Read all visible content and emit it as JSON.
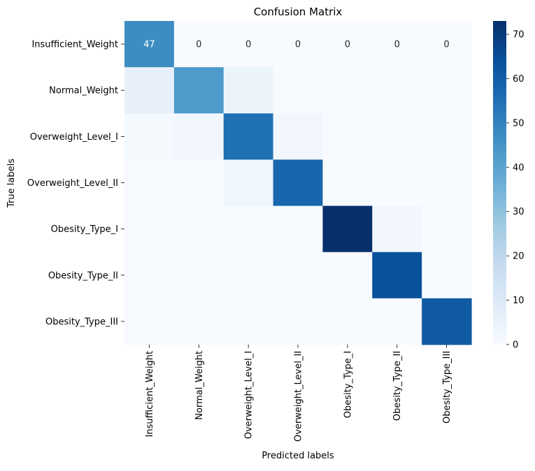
{
  "chart_data": {
    "type": "heatmap",
    "title": "Confusion Matrix",
    "xlabel": "Predicted labels",
    "ylabel": "True labels",
    "x_categories": [
      "Insufficient_Weight",
      "Normal_Weight",
      "Overweight_Level_I",
      "Overweight_Level_II",
      "Obesity_Type_I",
      "Obesity_Type_II",
      "Obesity_Type_III"
    ],
    "y_categories": [
      "Insufficient_Weight",
      "Normal_Weight",
      "Overweight_Level_I",
      "Overweight_Level_II",
      "Obesity_Type_I",
      "Obesity_Type_II",
      "Obesity_Type_III"
    ],
    "matrix": [
      [
        47,
        0,
        0,
        0,
        0,
        0,
        0
      ],
      [
        6,
        43,
        4,
        null,
        null,
        null,
        null
      ],
      [
        1,
        2,
        55,
        2,
        null,
        null,
        null
      ],
      [
        null,
        null,
        3,
        58,
        null,
        null,
        null
      ],
      [
        null,
        null,
        null,
        null,
        73,
        2,
        null
      ],
      [
        null,
        null,
        null,
        null,
        null,
        64,
        null
      ],
      [
        null,
        null,
        null,
        null,
        null,
        null,
        61
      ]
    ],
    "annotated_cells": [
      {
        "row": 0,
        "col": 0,
        "text": "47"
      },
      {
        "row": 0,
        "col": 1,
        "text": "0"
      },
      {
        "row": 0,
        "col": 2,
        "text": "0"
      },
      {
        "row": 0,
        "col": 3,
        "text": "0"
      },
      {
        "row": 0,
        "col": 4,
        "text": "0"
      },
      {
        "row": 0,
        "col": 5,
        "text": "0"
      },
      {
        "row": 0,
        "col": 6,
        "text": "0"
      }
    ],
    "colormap": "Blues",
    "color_range": [
      0,
      73
    ],
    "colorbar_ticks": [
      0,
      10,
      20,
      30,
      40,
      50,
      60,
      70
    ],
    "colorbar_tick_labels": [
      "0",
      "10",
      "20",
      "30",
      "40",
      "50",
      "60",
      "70"
    ],
    "grid": false,
    "legend": "colorbar-right"
  }
}
